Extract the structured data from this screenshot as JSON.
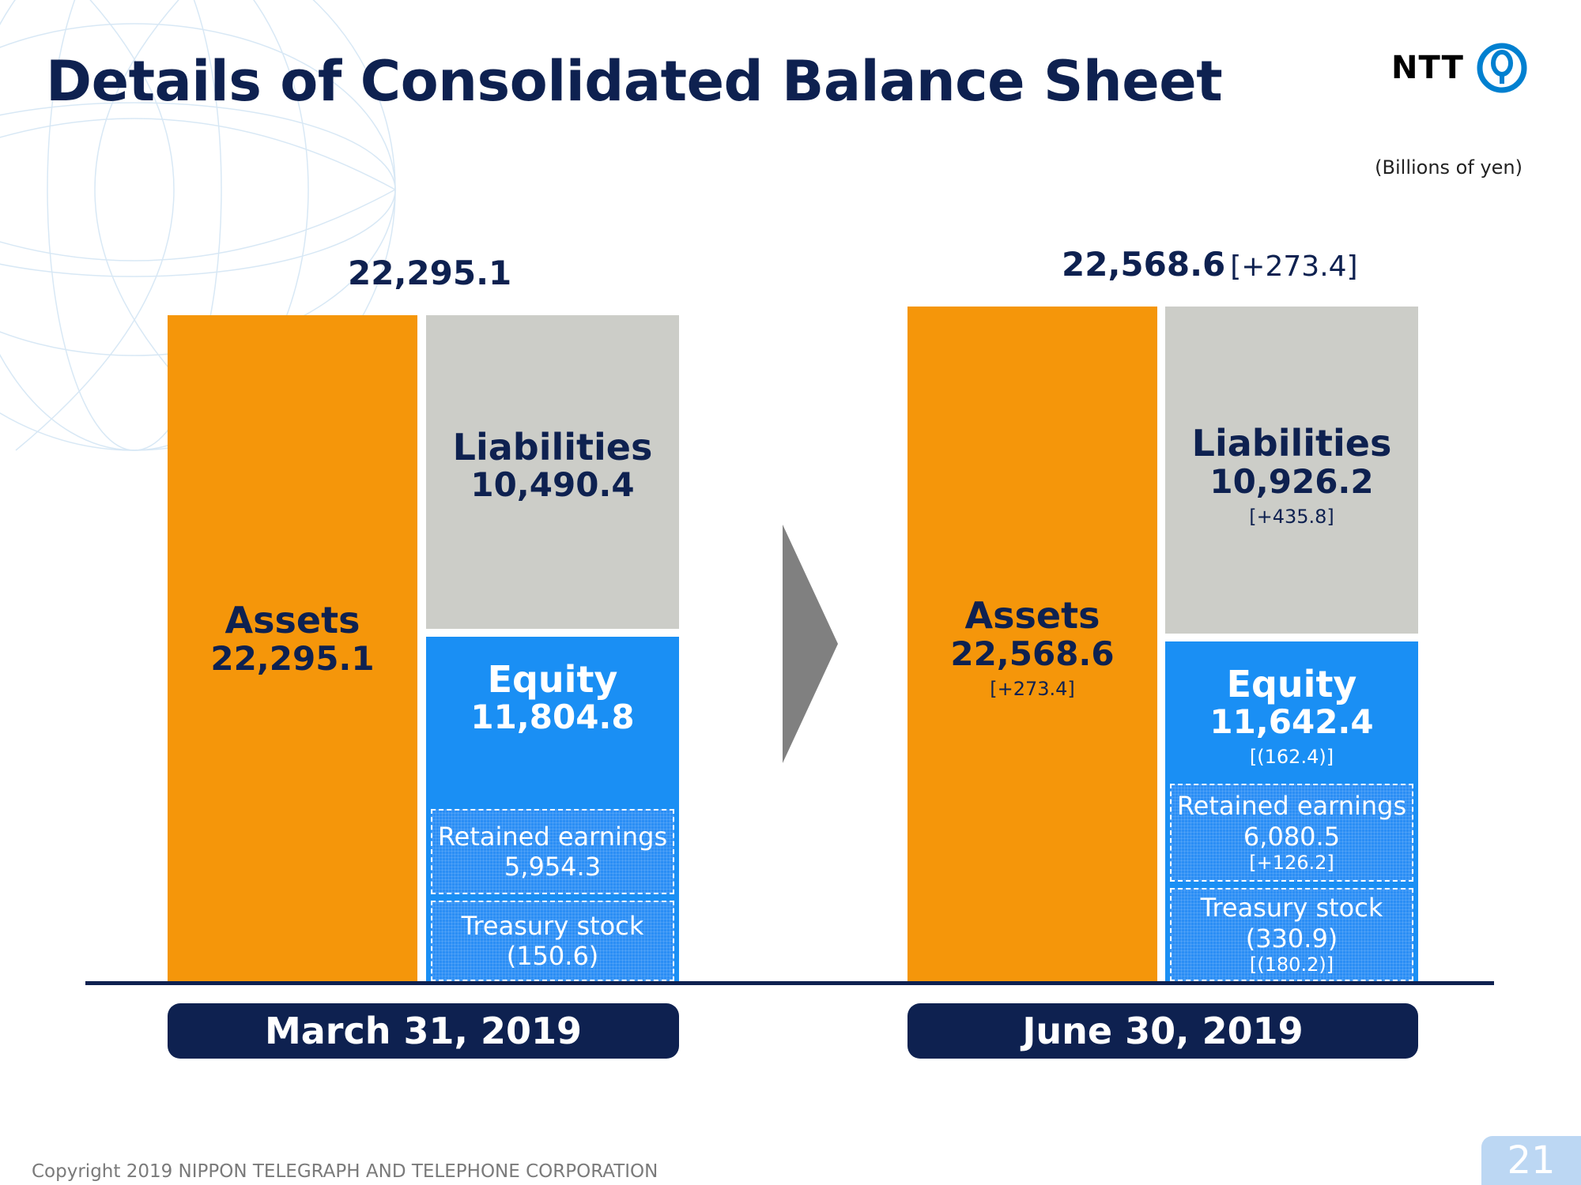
{
  "title": "Details of Consolidated Balance Sheet",
  "logo": {
    "text": "NTT",
    "icon": "ntt-logo-icon",
    "color": "#0080d0"
  },
  "units": "(Billions of yen)",
  "page_number": "21",
  "copyright": "Copyright 2019 NIPPON TELEGRAPH AND TELEPHONE CORPORATION",
  "colors": {
    "title": "#0e2150",
    "assets": "#f5960a",
    "liabilities": "#cccdc8",
    "equity": "#1a8ff4",
    "date_pill": "#0e2150",
    "arrow": "#808080"
  },
  "chart_data": {
    "type": "bar",
    "units": "(Billions of yen)",
    "categories": [
      "March 31, 2019",
      "June 30, 2019"
    ],
    "periods": [
      {
        "date": "March 31, 2019",
        "total": "22,295.1",
        "total_change": "",
        "assets": {
          "label": "Assets",
          "value": "22,295.1",
          "change": ""
        },
        "liabilities": {
          "label": "Liabilities",
          "value": "10,490.4",
          "change": ""
        },
        "equity": {
          "label": "Equity",
          "value": "11,804.8",
          "change": ""
        },
        "retained_earnings": {
          "label": "Retained earnings",
          "value": "5,954.3",
          "change": ""
        },
        "treasury_stock": {
          "label": "Treasury stock",
          "value": "(150.6)",
          "change": ""
        }
      },
      {
        "date": "June 30, 2019",
        "total": "22,568.6",
        "total_change": "[+273.4]",
        "assets": {
          "label": "Assets",
          "value": "22,568.6",
          "change": "[+273.4]"
        },
        "liabilities": {
          "label": "Liabilities",
          "value": "10,926.2",
          "change": "[+435.8]"
        },
        "equity": {
          "label": "Equity",
          "value": "11,642.4",
          "change": "[(162.4)]"
        },
        "retained_earnings": {
          "label": "Retained earnings",
          "value": "6,080.5",
          "change": "[+126.2]"
        },
        "treasury_stock": {
          "label": "Treasury stock",
          "value": "(330.9)",
          "change": "[(180.2)]"
        }
      }
    ],
    "series": [
      {
        "name": "Assets",
        "values": [
          22295.1,
          22568.6
        ]
      },
      {
        "name": "Liabilities",
        "values": [
          10490.4,
          10926.2
        ]
      },
      {
        "name": "Equity",
        "values": [
          11804.8,
          11642.4
        ]
      },
      {
        "name": "Retained earnings",
        "values": [
          5954.3,
          6080.5
        ]
      },
      {
        "name": "Treasury stock",
        "values": [
          -150.6,
          -330.9
        ]
      }
    ]
  }
}
